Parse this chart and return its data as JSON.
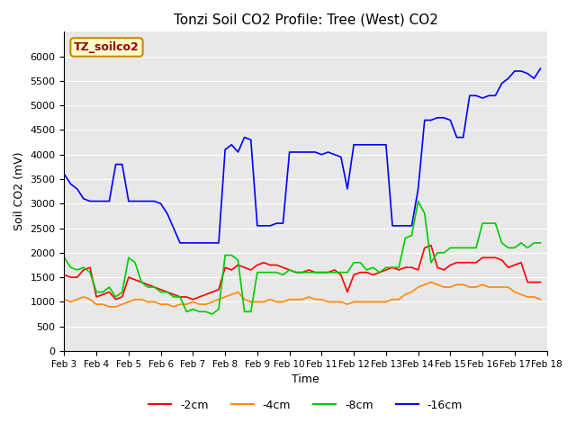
{
  "title": "Tonzi Soil CO2 Profile: Tree (West) CO2",
  "xlabel": "Time",
  "ylabel": "Soil CO2 (mV)",
  "ylim": [
    0,
    6500
  ],
  "yticks": [
    0,
    500,
    1000,
    1500,
    2000,
    2500,
    3000,
    3500,
    4000,
    4500,
    5000,
    5500,
    6000
  ],
  "background_color": "#e8e8e8",
  "label_box_text": "TZ_soilco2",
  "label_box_facecolor": "#ffffcc",
  "label_box_edgecolor": "#cc8800",
  "label_box_textcolor": "#990000",
  "series": {
    "-2cm": {
      "color": "#ff0000",
      "x": [
        3,
        3.2,
        3.4,
        3.6,
        3.8,
        4,
        4.2,
        4.4,
        4.6,
        4.8,
        5,
        5.2,
        5.4,
        5.6,
        5.8,
        6,
        6.2,
        6.4,
        6.6,
        6.8,
        7,
        7.2,
        7.4,
        7.6,
        7.8,
        8,
        8.2,
        8.4,
        8.6,
        8.8,
        9,
        9.2,
        9.4,
        9.6,
        9.8,
        10,
        10.2,
        10.4,
        10.6,
        10.8,
        11,
        11.2,
        11.4,
        11.6,
        11.8,
        12,
        12.2,
        12.4,
        12.6,
        12.8,
        13,
        13.2,
        13.4,
        13.6,
        13.8,
        14,
        14.2,
        14.4,
        14.6,
        14.8,
        15,
        15.2,
        15.4,
        15.6,
        15.8,
        16,
        16.2,
        16.4,
        16.6,
        16.8,
        17,
        17.2,
        17.4,
        17.6,
        17.8
      ],
      "y": [
        1550,
        1500,
        1500,
        1650,
        1700,
        1100,
        1150,
        1200,
        1050,
        1100,
        1500,
        1450,
        1400,
        1350,
        1300,
        1250,
        1200,
        1150,
        1100,
        1100,
        1050,
        1100,
        1150,
        1200,
        1250,
        1700,
        1650,
        1750,
        1700,
        1650,
        1750,
        1800,
        1750,
        1750,
        1700,
        1650,
        1600,
        1600,
        1650,
        1600,
        1600,
        1600,
        1650,
        1550,
        1200,
        1550,
        1600,
        1600,
        1550,
        1600,
        1650,
        1700,
        1650,
        1700,
        1700,
        1650,
        2100,
        2150,
        1700,
        1650,
        1750,
        1800,
        1800,
        1800,
        1800,
        1900,
        1900,
        1900,
        1850,
        1700,
        1750,
        1800,
        1400,
        1400,
        1400
      ]
    },
    "-4cm": {
      "color": "#ff8800",
      "x": [
        3,
        3.2,
        3.4,
        3.6,
        3.8,
        4,
        4.2,
        4.4,
        4.6,
        4.8,
        5,
        5.2,
        5.4,
        5.6,
        5.8,
        6,
        6.2,
        6.4,
        6.6,
        6.8,
        7,
        7.2,
        7.4,
        7.6,
        7.8,
        8,
        8.2,
        8.4,
        8.6,
        8.8,
        9,
        9.2,
        9.4,
        9.6,
        9.8,
        10,
        10.2,
        10.4,
        10.6,
        10.8,
        11,
        11.2,
        11.4,
        11.6,
        11.8,
        12,
        12.2,
        12.4,
        12.6,
        12.8,
        13,
        13.2,
        13.4,
        13.6,
        13.8,
        14,
        14.2,
        14.4,
        14.6,
        14.8,
        15,
        15.2,
        15.4,
        15.6,
        15.8,
        16,
        16.2,
        16.4,
        16.6,
        16.8,
        17,
        17.2,
        17.4,
        17.6,
        17.8
      ],
      "y": [
        1050,
        1000,
        1050,
        1100,
        1050,
        950,
        950,
        900,
        900,
        950,
        1000,
        1050,
        1050,
        1000,
        1000,
        950,
        950,
        900,
        950,
        950,
        1000,
        950,
        950,
        1000,
        1050,
        1100,
        1150,
        1200,
        1050,
        1000,
        1000,
        1000,
        1050,
        1000,
        1000,
        1050,
        1050,
        1050,
        1100,
        1050,
        1050,
        1000,
        1000,
        1000,
        950,
        1000,
        1000,
        1000,
        1000,
        1000,
        1000,
        1050,
        1050,
        1150,
        1200,
        1300,
        1350,
        1400,
        1350,
        1300,
        1300,
        1350,
        1350,
        1300,
        1300,
        1350,
        1300,
        1300,
        1300,
        1300,
        1200,
        1150,
        1100,
        1100,
        1050
      ]
    },
    "-8cm": {
      "color": "#00cc00",
      "x": [
        3,
        3.2,
        3.4,
        3.6,
        3.8,
        4,
        4.2,
        4.4,
        4.6,
        4.8,
        5,
        5.2,
        5.4,
        5.6,
        5.8,
        6,
        6.2,
        6.4,
        6.6,
        6.8,
        7,
        7.2,
        7.4,
        7.6,
        7.8,
        8,
        8.2,
        8.4,
        8.6,
        8.8,
        9,
        9.2,
        9.4,
        9.6,
        9.8,
        10,
        10.2,
        10.4,
        10.6,
        10.8,
        11,
        11.2,
        11.4,
        11.6,
        11.8,
        12,
        12.2,
        12.4,
        12.6,
        12.8,
        13,
        13.2,
        13.4,
        13.6,
        13.8,
        14,
        14.2,
        14.4,
        14.6,
        14.8,
        15,
        15.2,
        15.4,
        15.6,
        15.8,
        16,
        16.2,
        16.4,
        16.6,
        16.8,
        17,
        17.2,
        17.4,
        17.6,
        17.8
      ],
      "y": [
        1900,
        1700,
        1650,
        1700,
        1600,
        1200,
        1200,
        1300,
        1100,
        1200,
        1900,
        1800,
        1400,
        1300,
        1300,
        1200,
        1200,
        1100,
        1100,
        800,
        850,
        800,
        800,
        750,
        850,
        1950,
        1950,
        1850,
        800,
        800,
        1600,
        1600,
        1600,
        1600,
        1550,
        1650,
        1600,
        1600,
        1600,
        1600,
        1600,
        1600,
        1600,
        1600,
        1600,
        1800,
        1800,
        1650,
        1700,
        1600,
        1700,
        1700,
        1700,
        2300,
        2350,
        3050,
        2800,
        1800,
        2000,
        2000,
        2100,
        2100,
        2100,
        2100,
        2100,
        2600,
        2600,
        2600,
        2200,
        2100,
        2100,
        2200,
        2100,
        2200,
        2200
      ]
    },
    "-16cm": {
      "color": "#0000ff",
      "x": [
        3,
        3.2,
        3.4,
        3.6,
        3.8,
        4,
        4.2,
        4.4,
        4.6,
        4.8,
        5,
        5.2,
        5.4,
        5.6,
        5.8,
        6,
        6.2,
        6.4,
        6.6,
        6.8,
        7,
        7.2,
        7.4,
        7.6,
        7.8,
        8,
        8.2,
        8.4,
        8.6,
        8.8,
        9,
        9.2,
        9.4,
        9.6,
        9.8,
        10,
        10.2,
        10.4,
        10.6,
        10.8,
        11,
        11.2,
        11.4,
        11.6,
        11.8,
        12,
        12.2,
        12.4,
        12.6,
        12.8,
        13,
        13.2,
        13.4,
        13.6,
        13.8,
        14,
        14.2,
        14.4,
        14.6,
        14.8,
        15,
        15.2,
        15.4,
        15.6,
        15.8,
        16,
        16.2,
        16.4,
        16.6,
        16.8,
        17,
        17.2,
        17.4,
        17.6,
        17.8
      ],
      "y": [
        3600,
        3400,
        3300,
        3100,
        3050,
        3050,
        3050,
        3050,
        3800,
        3800,
        3050,
        3050,
        3050,
        3050,
        3050,
        3000,
        2800,
        2500,
        2200,
        2200,
        2200,
        2200,
        2200,
        2200,
        2200,
        4100,
        4200,
        4050,
        4350,
        4300,
        2550,
        2550,
        2550,
        2600,
        2600,
        4050,
        4050,
        4050,
        4050,
        4050,
        4000,
        4050,
        4000,
        3950,
        3300,
        4200,
        4200,
        4200,
        4200,
        4200,
        4200,
        2550,
        2550,
        2550,
        2550,
        3300,
        4700,
        4700,
        4750,
        4750,
        4700,
        4350,
        4350,
        5200,
        5200,
        5150,
        5200,
        5200,
        5450,
        5550,
        5700,
        5700,
        5650,
        5550,
        5750
      ]
    }
  },
  "xtick_labels": [
    "Feb 3",
    "Feb 4",
    "Feb 5",
    "Feb 6",
    "Feb 7",
    "Feb 8",
    "Feb 9",
    "Feb 10",
    "Feb 11",
    "Feb 12",
    "Feb 13",
    "Feb 14",
    "Feb 15",
    "Feb 16",
    "Feb 17",
    "Feb 18"
  ],
  "xtick_positions": [
    3,
    4,
    5,
    6,
    7,
    8,
    9,
    10,
    11,
    12,
    13,
    14,
    15,
    16,
    17,
    18
  ]
}
